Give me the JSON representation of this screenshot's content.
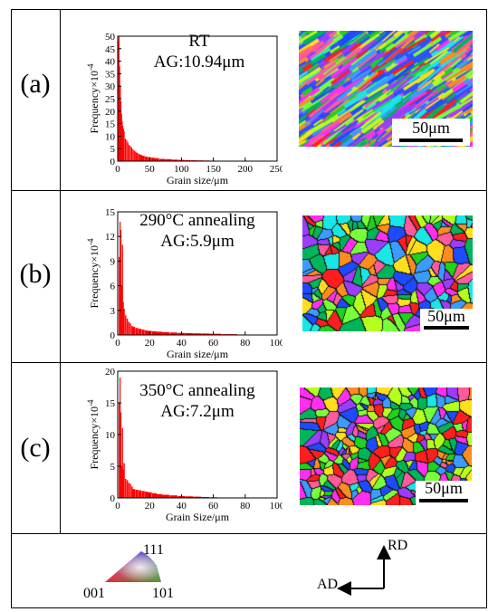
{
  "panels": [
    {
      "label": "(a)",
      "title": "RT",
      "subtitle": "AG:10.94μm",
      "scale_label": "50μm",
      "texture": "elongated"
    },
    {
      "label": "(b)",
      "title": "290°C annealing",
      "subtitle": "AG:5.9μm",
      "scale_label": "50μm",
      "texture": "equiaxed"
    },
    {
      "label": "(c)",
      "title": "350°C annealing",
      "subtitle": "AG:7.2μm",
      "scale_label": "50μm",
      "texture": "equiaxed-fine"
    }
  ],
  "legend": {
    "ipf_labels": [
      "001",
      "101",
      "111"
    ],
    "rd_label": "RD",
    "ad_label": "AD"
  },
  "chart_data": [
    {
      "type": "bar",
      "xlabel": "Grain size/μm",
      "ylabel": "Frequency×10",
      "ylabel_exp": "-4",
      "xlim": [
        0,
        250
      ],
      "ylim": [
        0,
        50
      ],
      "xticks": [
        0,
        50,
        100,
        150,
        200,
        250
      ],
      "yticks": [
        0,
        5,
        10,
        15,
        20,
        25,
        30,
        35,
        40,
        45,
        50
      ],
      "color": "#ff0000",
      "x": [
        1,
        2,
        3,
        4,
        5,
        6,
        7,
        8,
        9,
        10,
        12,
        14,
        16,
        18,
        20,
        22,
        24,
        26,
        28,
        30,
        33,
        36,
        40,
        45,
        50,
        55,
        60,
        70,
        80,
        90,
        100,
        110,
        120,
        130,
        140,
        150,
        160,
        175,
        190,
        205,
        220
      ],
      "values": [
        48,
        51,
        38,
        30,
        24,
        19,
        16,
        14,
        13,
        12,
        9,
        8.5,
        7.5,
        6.5,
        6,
        5.5,
        4.8,
        4.2,
        3.8,
        3.4,
        3,
        2.6,
        2.2,
        1.8,
        1.6,
        1.4,
        1.2,
        0.9,
        0.8,
        0.6,
        0.5,
        0.4,
        0.35,
        0.3,
        0.25,
        0.2,
        0.18,
        0.15,
        0.12,
        0.1,
        0.08
      ]
    },
    {
      "type": "bar",
      "xlabel": "Grain size/μm",
      "ylabel": "Frequency×10",
      "ylabel_exp": "-4",
      "xlim": [
        0,
        100
      ],
      "ylim": [
        0,
        15
      ],
      "xticks": [
        0,
        20,
        40,
        60,
        80,
        100
      ],
      "yticks": [
        0,
        3,
        6,
        9,
        12,
        15
      ],
      "color": "#ff0000",
      "x": [
        1,
        1.5,
        2,
        2.5,
        3,
        3.5,
        4,
        5,
        6,
        7,
        8,
        9,
        10,
        12,
        14,
        16,
        18,
        20,
        23,
        26,
        30,
        35,
        40,
        45,
        50,
        55,
        60,
        70,
        80
      ],
      "values": [
        9.5,
        13.8,
        12.8,
        6,
        11,
        4,
        3.2,
        2.4,
        2,
        1.6,
        1.4,
        1.1,
        1,
        0.85,
        0.75,
        0.65,
        0.55,
        0.5,
        0.45,
        0.4,
        0.35,
        0.3,
        0.25,
        0.22,
        0.2,
        0.18,
        0.15,
        0.1,
        0.05
      ]
    },
    {
      "type": "bar",
      "xlabel": "Grain Size/μm",
      "ylabel": "Frequency×10",
      "ylabel_exp": "-4",
      "xlim": [
        0,
        100
      ],
      "ylim": [
        0,
        20
      ],
      "xticks": [
        0,
        20,
        40,
        60,
        80,
        100
      ],
      "yticks": [
        0,
        5,
        10,
        15,
        20
      ],
      "color": "#ff0000",
      "x": [
        1,
        1.5,
        2,
        2.5,
        3,
        3.5,
        4,
        5,
        6,
        7,
        8,
        9,
        10,
        12,
        14,
        16,
        18,
        20,
        23,
        26,
        30,
        35,
        40,
        45,
        50,
        55,
        60
      ],
      "values": [
        15,
        19,
        13.5,
        5,
        11,
        4.5,
        5.5,
        3,
        2.8,
        2.4,
        2.2,
        1.8,
        1.4,
        1.3,
        1.2,
        1.1,
        1,
        0.9,
        0.75,
        0.6,
        0.5,
        0.4,
        0.3,
        0.25,
        0.2,
        0.15,
        0.1
      ]
    }
  ]
}
